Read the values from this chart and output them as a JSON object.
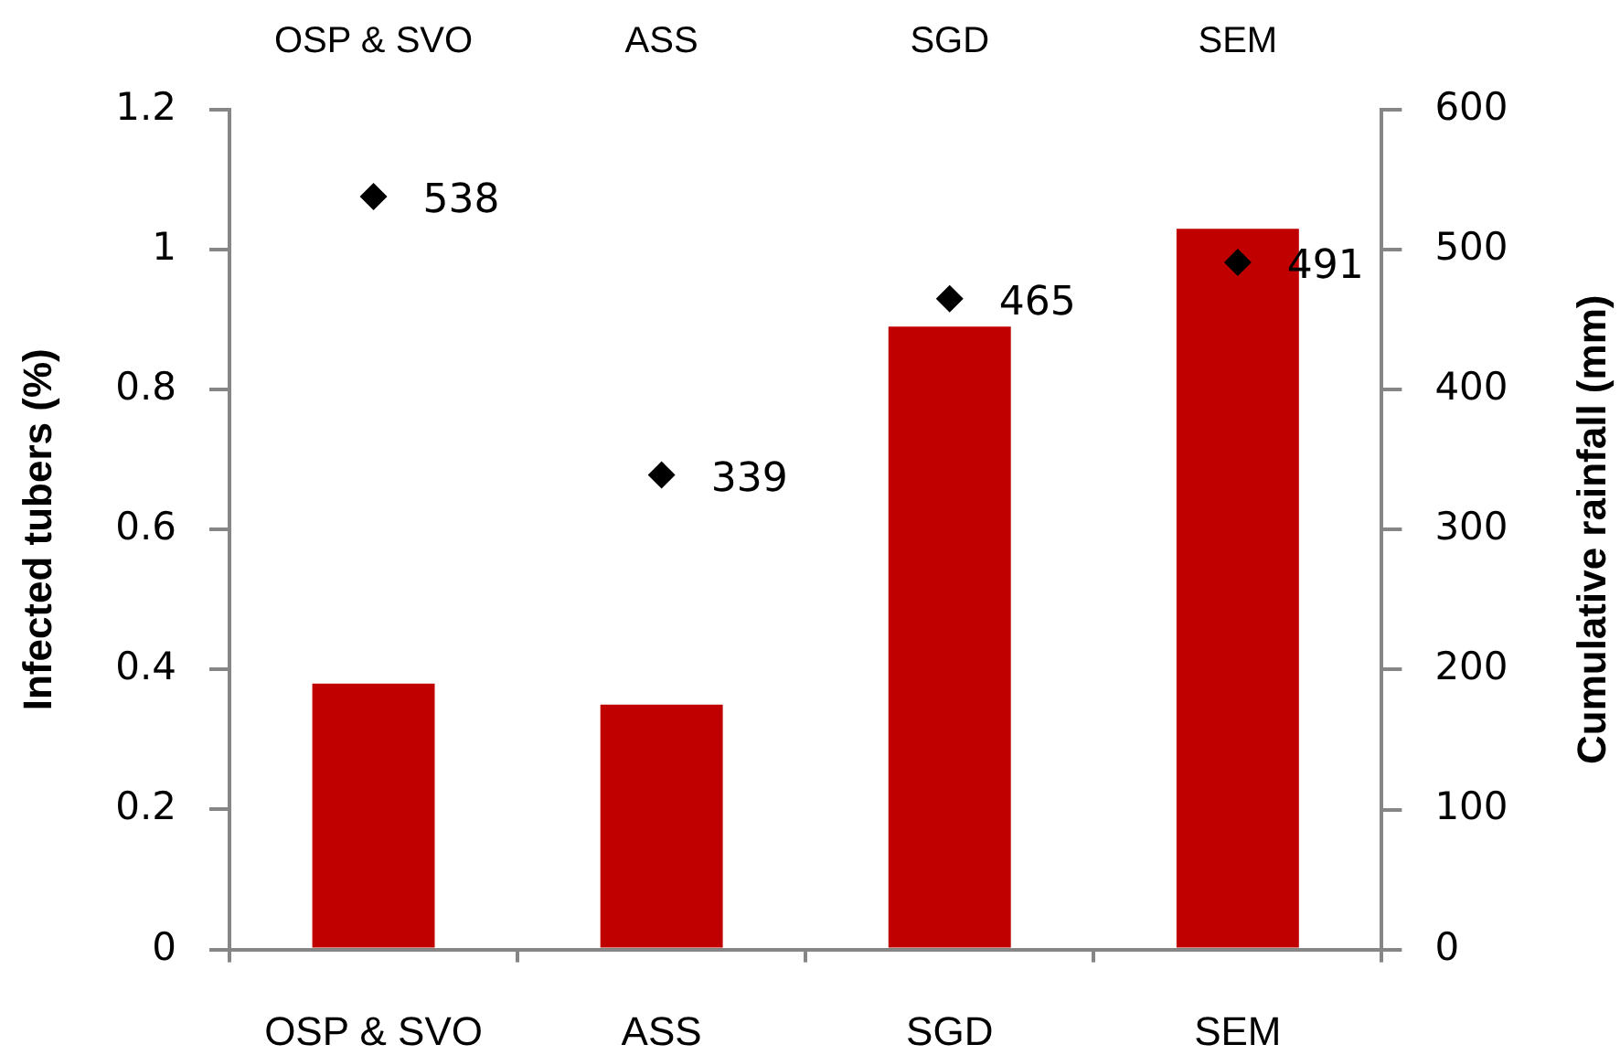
{
  "chart_data": {
    "type": "bar",
    "categories": [
      "OSP & SVO",
      "ASS",
      "SGD",
      "SEM"
    ],
    "ylabel": "Infected tubers (%)",
    "y2label": "Cumulative rainfall (mm)",
    "ylim": [
      0,
      1.2
    ],
    "yticks": [
      0,
      0.2,
      0.4,
      0.6,
      0.8,
      1,
      1.2
    ],
    "y2lim": [
      0,
      600
    ],
    "y2ticks": [
      0,
      100,
      200,
      300,
      400,
      500,
      600
    ],
    "series": [
      {
        "color": "#c00000",
        "values": [
          0.38,
          0.35,
          0.89,
          1.03
        ]
      },
      {
        "type": "scatter",
        "axis": "y2",
        "color": "#000000",
        "marker": "diamond",
        "x": [
          "OSP & SVO",
          "ASS",
          "SGD",
          "SEM"
        ],
        "values": [
          538,
          339,
          465,
          491
        ],
        "value_labels": [
          "538",
          "339",
          "465",
          "491"
        ]
      }
    ]
  }
}
